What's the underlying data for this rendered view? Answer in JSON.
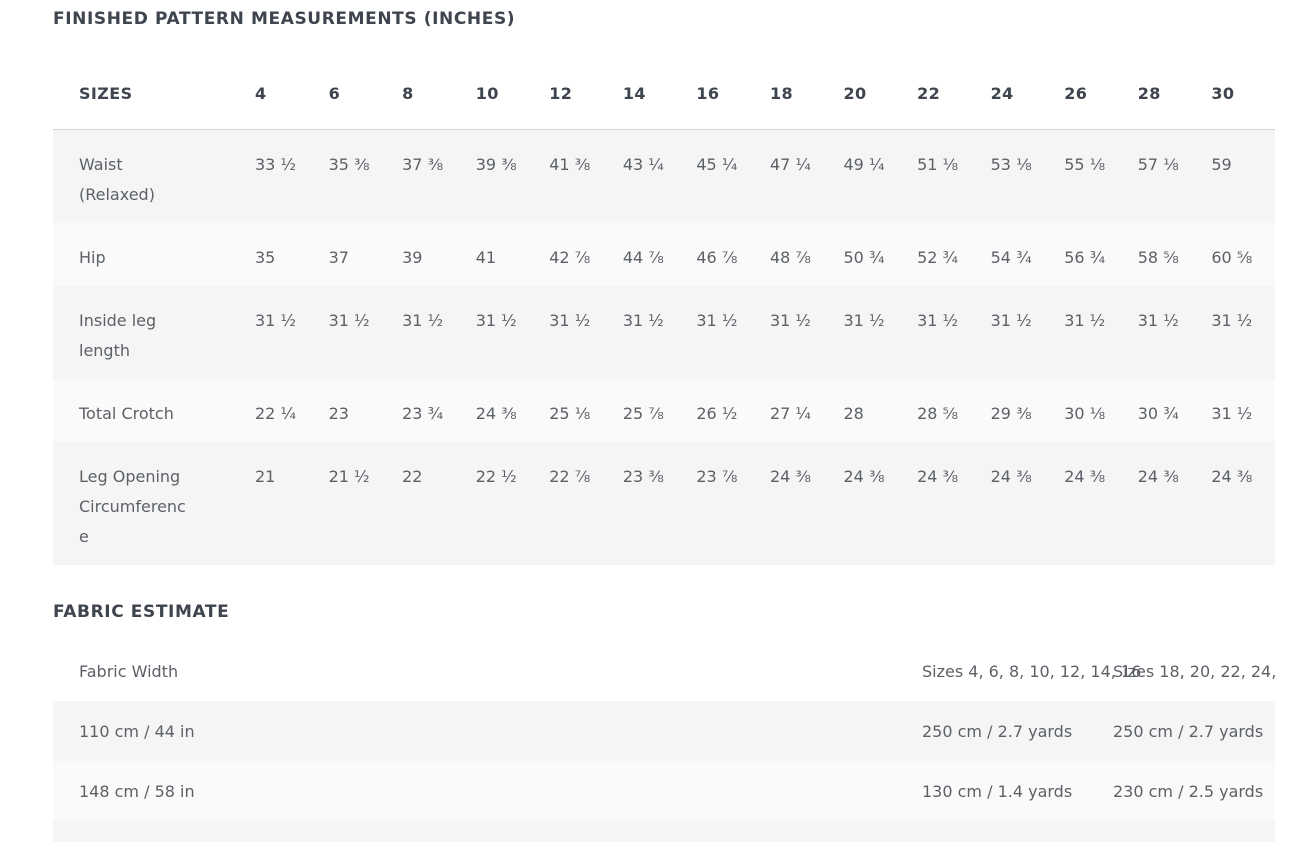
{
  "measurements": {
    "title": "FINISHED PATTERN MEASUREMENTS (INCHES)",
    "header_label": "SIZES",
    "sizes": [
      "4",
      "6",
      "8",
      "10",
      "12",
      "14",
      "16",
      "18",
      "20",
      "22",
      "24",
      "26",
      "28",
      "30"
    ],
    "rows": [
      {
        "label": "Waist (Relaxed)",
        "values": [
          "33 ½",
          "35 ⅜",
          "37 ⅜",
          "39 ⅜",
          "41 ⅜",
          "43 ¼",
          "45 ¼",
          "47 ¼",
          "49 ¼",
          "51 ⅛",
          "53 ⅛",
          "55 ⅛",
          "57 ⅛",
          "59"
        ]
      },
      {
        "label": "Hip",
        "values": [
          "35",
          "37",
          "39",
          "41",
          "42 ⅞",
          "44 ⅞",
          "46 ⅞",
          "48 ⅞",
          "50 ¾",
          "52 ¾",
          "54 ¾",
          "56 ¾",
          "58 ⅝",
          "60 ⅝"
        ]
      },
      {
        "label": "Inside leg length",
        "values": [
          "31 ½",
          "31 ½",
          "31 ½",
          "31 ½",
          "31 ½",
          "31 ½",
          "31 ½",
          "31 ½",
          "31 ½",
          "31 ½",
          "31 ½",
          "31 ½",
          "31 ½",
          "31 ½"
        ]
      },
      {
        "label": "Total Crotch",
        "values": [
          "22 ¼",
          "23",
          "23 ¾",
          "24 ⅜",
          "25 ⅛",
          "25 ⅞",
          "26 ½",
          "27 ¼",
          "28",
          "28 ⅝",
          "29 ⅜",
          "30 ⅛",
          "30 ¾",
          "31 ½"
        ]
      },
      {
        "label": "Leg Opening Circumference",
        "values": [
          "21",
          "21 ½",
          "22",
          "22 ½",
          "22 ⅞",
          "23 ⅜",
          "23 ⅞",
          "24 ⅜",
          "24 ⅜",
          "24 ⅜",
          "24 ⅜",
          "24 ⅜",
          "24 ⅜",
          "24 ⅜"
        ]
      }
    ]
  },
  "fabric": {
    "title": "FABRIC ESTIMATE",
    "header": {
      "col1": "Fabric Width",
      "col2": "Sizes 4, 6, 8, 10, 12, 14, 16",
      "col3": "Sizes 18, 20, 22, 24,"
    },
    "rows": [
      {
        "col1": "110 cm / 44 in",
        "col2": "250 cm / 2.7 yards",
        "col3": "250 cm / 2.7 yards"
      },
      {
        "col1": "148 cm / 58 in",
        "col2": "130 cm / 1.4 yards",
        "col3": "230 cm / 2.5 yards"
      }
    ]
  },
  "colors": {
    "heading_text": "#3f454e",
    "body_text": "#5c6167",
    "row_stripe": "#f5f5f6",
    "row_stripe_alt": "#fafafa"
  }
}
